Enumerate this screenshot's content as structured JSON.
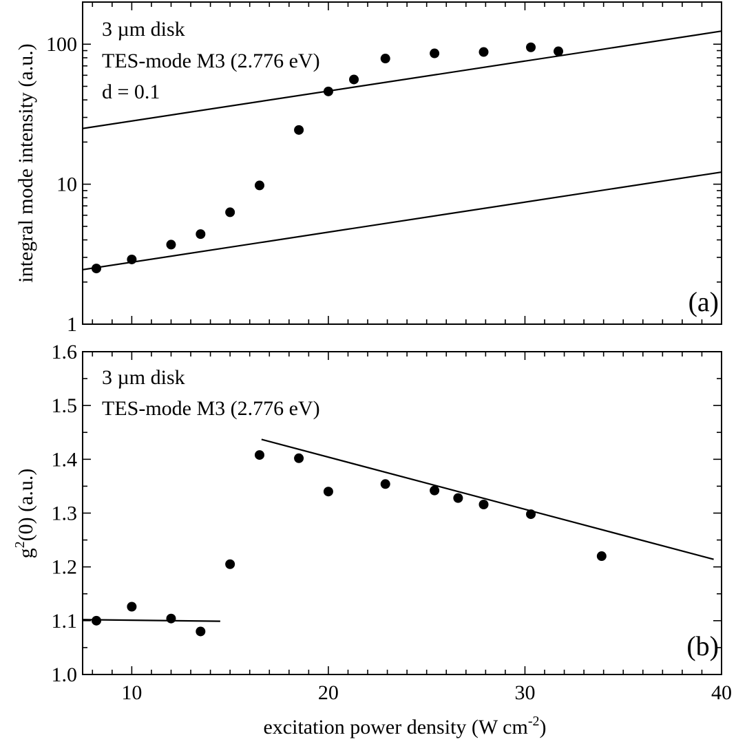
{
  "chart_data": [
    {
      "panel": "a",
      "type": "scatter",
      "panel_label": "(a)",
      "ylabel": "integral mode intensity (a.u.)",
      "yscale": "log",
      "ylim": [
        1,
        200
      ],
      "yticks": [
        1,
        10,
        100
      ],
      "ytick_labels": [
        "1",
        "10",
        "100"
      ],
      "xlim": [
        7.5,
        40
      ],
      "annotations": [
        "3 µm disk",
        "TES-mode M3 (2.776 eV)",
        "d = 0.1"
      ],
      "x": [
        8.2,
        10.0,
        12.0,
        13.5,
        15.0,
        16.5,
        18.5,
        20.0,
        21.3,
        22.9,
        25.4,
        27.9,
        30.3,
        31.7
      ],
      "y": [
        2.5,
        2.9,
        3.7,
        4.4,
        6.3,
        9.8,
        24.4,
        46,
        56,
        79,
        86,
        88,
        95,
        89
      ],
      "fit_lines": [
        {
          "x": [
            7.5,
            40
          ],
          "y": [
            25,
            124
          ]
        },
        {
          "x": [
            7.5,
            40
          ],
          "y": [
            2.45,
            12.2
          ]
        }
      ]
    },
    {
      "panel": "b",
      "type": "scatter",
      "panel_label": "(b)",
      "ylabel_main": "g",
      "ylabel_sup": "2",
      "ylabel_rest": "(0) (a.u.)",
      "xlabel_main": "excitation power density (W cm",
      "xlabel_sup": "-2",
      "xlabel_end": ")",
      "ylim": [
        1.0,
        1.6
      ],
      "yticks": [
        1.0,
        1.1,
        1.2,
        1.3,
        1.4,
        1.5,
        1.6
      ],
      "ytick_labels": [
        "1.0",
        "1.1",
        "1.2",
        "1.3",
        "1.4",
        "1.5",
        "1.6"
      ],
      "xlim": [
        7.5,
        40
      ],
      "xticks": [
        10,
        20,
        30,
        40
      ],
      "xtick_labels": [
        "10",
        "20",
        "30",
        "40"
      ],
      "annotations": [
        "3 µm disk",
        "TES-mode M3 (2.776 eV)"
      ],
      "x": [
        8.2,
        10.0,
        12.0,
        13.5,
        15.0,
        16.5,
        18.5,
        20.0,
        22.9,
        25.4,
        26.6,
        27.9,
        30.3,
        33.9
      ],
      "y": [
        1.1,
        1.126,
        1.104,
        1.08,
        1.205,
        1.408,
        1.402,
        1.34,
        1.354,
        1.342,
        1.328,
        1.316,
        1.298,
        1.22
      ],
      "fit_lines": [
        {
          "x": [
            7.5,
            14.5
          ],
          "y": [
            1.102,
            1.099
          ]
        },
        {
          "x": [
            16.6,
            39.6
          ],
          "y": [
            1.437,
            1.214
          ]
        }
      ]
    }
  ]
}
